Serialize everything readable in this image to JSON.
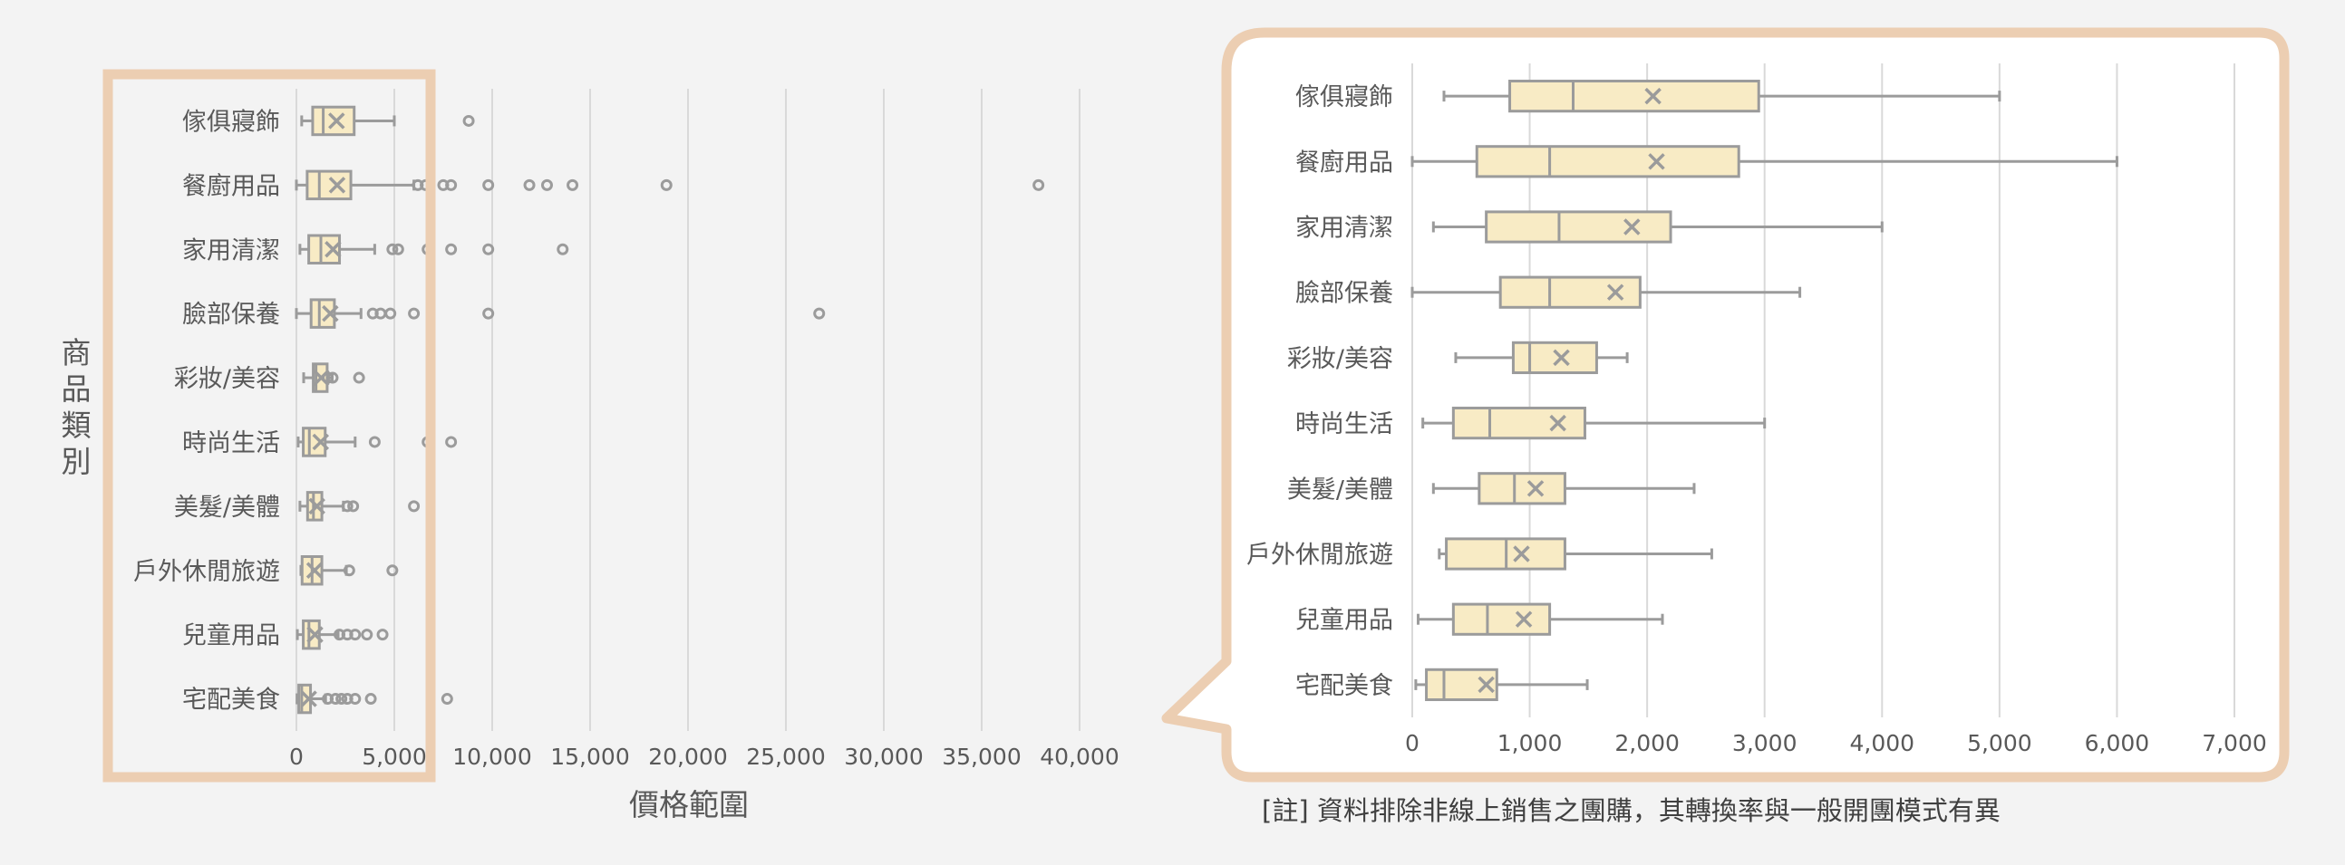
{
  "colors": {
    "background": "#f3f3f3",
    "box_fill": "#f8ebc5",
    "box_stroke": "#9b9b9b",
    "grid": "#d9d9d9",
    "highlight_border": "#ecceb2",
    "text": "#595959"
  },
  "chart_data": [
    {
      "type": "box",
      "orientation": "horizontal",
      "xlabel": "價格範圍",
      "ylabel": "商品類別",
      "xlim": [
        0,
        40000
      ],
      "xticks": [
        "0",
        "5,000",
        "10,000",
        "15,000",
        "20,000",
        "25,000",
        "30,000",
        "35,000",
        "40,000"
      ],
      "grid": "vertical",
      "categories": [
        "傢俱寢飾",
        "餐廚用品",
        "家用清潔",
        "臉部保養",
        "彩妝/美容",
        "時尚生活",
        "美髮/美體",
        "戶外休閒旅遊",
        "兒童用品",
        "宅配美食"
      ],
      "series": [
        {
          "category": "傢俱寢飾",
          "min": 270,
          "q1": 830,
          "median": 1370,
          "q3": 2950,
          "max": 5000,
          "mean": 2050,
          "outliers": [
            8800
          ]
        },
        {
          "category": "餐廚用品",
          "min": 0,
          "q1": 550,
          "median": 1170,
          "q3": 2780,
          "max": 6000,
          "mean": 2080,
          "outliers": [
            6200,
            6600,
            7500,
            7900,
            9800,
            11900,
            12800,
            14100,
            18900,
            37900
          ]
        },
        {
          "category": "家用清潔",
          "min": 180,
          "q1": 630,
          "median": 1250,
          "q3": 2200,
          "max": 4000,
          "mean": 1870,
          "outliers": [
            4900,
            5200,
            6700,
            7900,
            9800,
            13600
          ]
        },
        {
          "category": "臉部保養",
          "min": 0,
          "q1": 750,
          "median": 1170,
          "q3": 1940,
          "max": 3300,
          "mean": 1730,
          "outliers": [
            3900,
            4300,
            4800,
            6000,
            9800,
            26700
          ]
        },
        {
          "category": "彩妝/美容",
          "min": 370,
          "q1": 860,
          "median": 1000,
          "q3": 1570,
          "max": 1830,
          "mean": 1270,
          "outliers": [
            1600,
            1850,
            3200
          ]
        },
        {
          "category": "時尚生活",
          "min": 90,
          "q1": 350,
          "median": 660,
          "q3": 1470,
          "max": 3000,
          "mean": 1240,
          "outliers": [
            4000,
            6700,
            7900
          ]
        },
        {
          "category": "美髮/美體",
          "min": 180,
          "q1": 570,
          "median": 870,
          "q3": 1300,
          "max": 2400,
          "mean": 1050,
          "outliers": [
            2600,
            2900,
            6000
          ]
        },
        {
          "category": "戶外休閒旅遊",
          "min": 230,
          "q1": 290,
          "median": 800,
          "q3": 1300,
          "max": 2550,
          "mean": 930,
          "outliers": [
            2700,
            4900
          ]
        },
        {
          "category": "兒童用品",
          "min": 50,
          "q1": 350,
          "median": 640,
          "q3": 1170,
          "max": 2130,
          "mean": 950,
          "outliers": [
            2200,
            2600,
            3000,
            3600,
            4400
          ]
        },
        {
          "category": "宅配美食",
          "min": 30,
          "q1": 120,
          "median": 270,
          "q3": 720,
          "max": 1490,
          "mean": 630,
          "outliers": [
            1600,
            2000,
            2300,
            2600,
            3000,
            3800,
            7700
          ]
        }
      ]
    },
    {
      "type": "box",
      "orientation": "horizontal",
      "xlabel": "",
      "ylabel": "",
      "xlim": [
        0,
        7000
      ],
      "xticks": [
        "0",
        "1,000",
        "2,000",
        "3,000",
        "4,000",
        "5,000",
        "6,000",
        "7,000"
      ],
      "grid": "vertical",
      "categories": [
        "傢俱寢飾",
        "餐廚用品",
        "家用清潔",
        "臉部保養",
        "彩妝/美容",
        "時尚生活",
        "美髮/美體",
        "戶外休閒旅遊",
        "兒童用品",
        "宅配美食"
      ],
      "series": [
        {
          "category": "傢俱寢飾",
          "min": 270,
          "q1": 830,
          "median": 1370,
          "q3": 2950,
          "max": 5000,
          "mean": 2050
        },
        {
          "category": "餐廚用品",
          "min": 0,
          "q1": 550,
          "median": 1170,
          "q3": 2780,
          "max": 6000,
          "mean": 2080
        },
        {
          "category": "家用清潔",
          "min": 180,
          "q1": 630,
          "median": 1250,
          "q3": 2200,
          "max": 4000,
          "mean": 1870
        },
        {
          "category": "臉部保養",
          "min": 0,
          "q1": 750,
          "median": 1170,
          "q3": 1940,
          "max": 3300,
          "mean": 1730
        },
        {
          "category": "彩妝/美容",
          "min": 370,
          "q1": 860,
          "median": 1000,
          "q3": 1570,
          "max": 1830,
          "mean": 1270
        },
        {
          "category": "時尚生活",
          "min": 90,
          "q1": 350,
          "median": 660,
          "q3": 1470,
          "max": 3000,
          "mean": 1240
        },
        {
          "category": "美髮/美體",
          "min": 180,
          "q1": 570,
          "median": 870,
          "q3": 1300,
          "max": 2400,
          "mean": 1050
        },
        {
          "category": "戶外休閒旅遊",
          "min": 230,
          "q1": 290,
          "median": 800,
          "q3": 1300,
          "max": 2550,
          "mean": 930
        },
        {
          "category": "兒童用品",
          "min": 50,
          "q1": 350,
          "median": 640,
          "q3": 1170,
          "max": 2130,
          "mean": 950
        },
        {
          "category": "宅配美食",
          "min": 30,
          "q1": 120,
          "median": 270,
          "q3": 720,
          "max": 1490,
          "mean": 630
        }
      ]
    }
  ],
  "note": "[註] 資料排除非線上銷售之團購，其轉換率與一般開團模式有異"
}
